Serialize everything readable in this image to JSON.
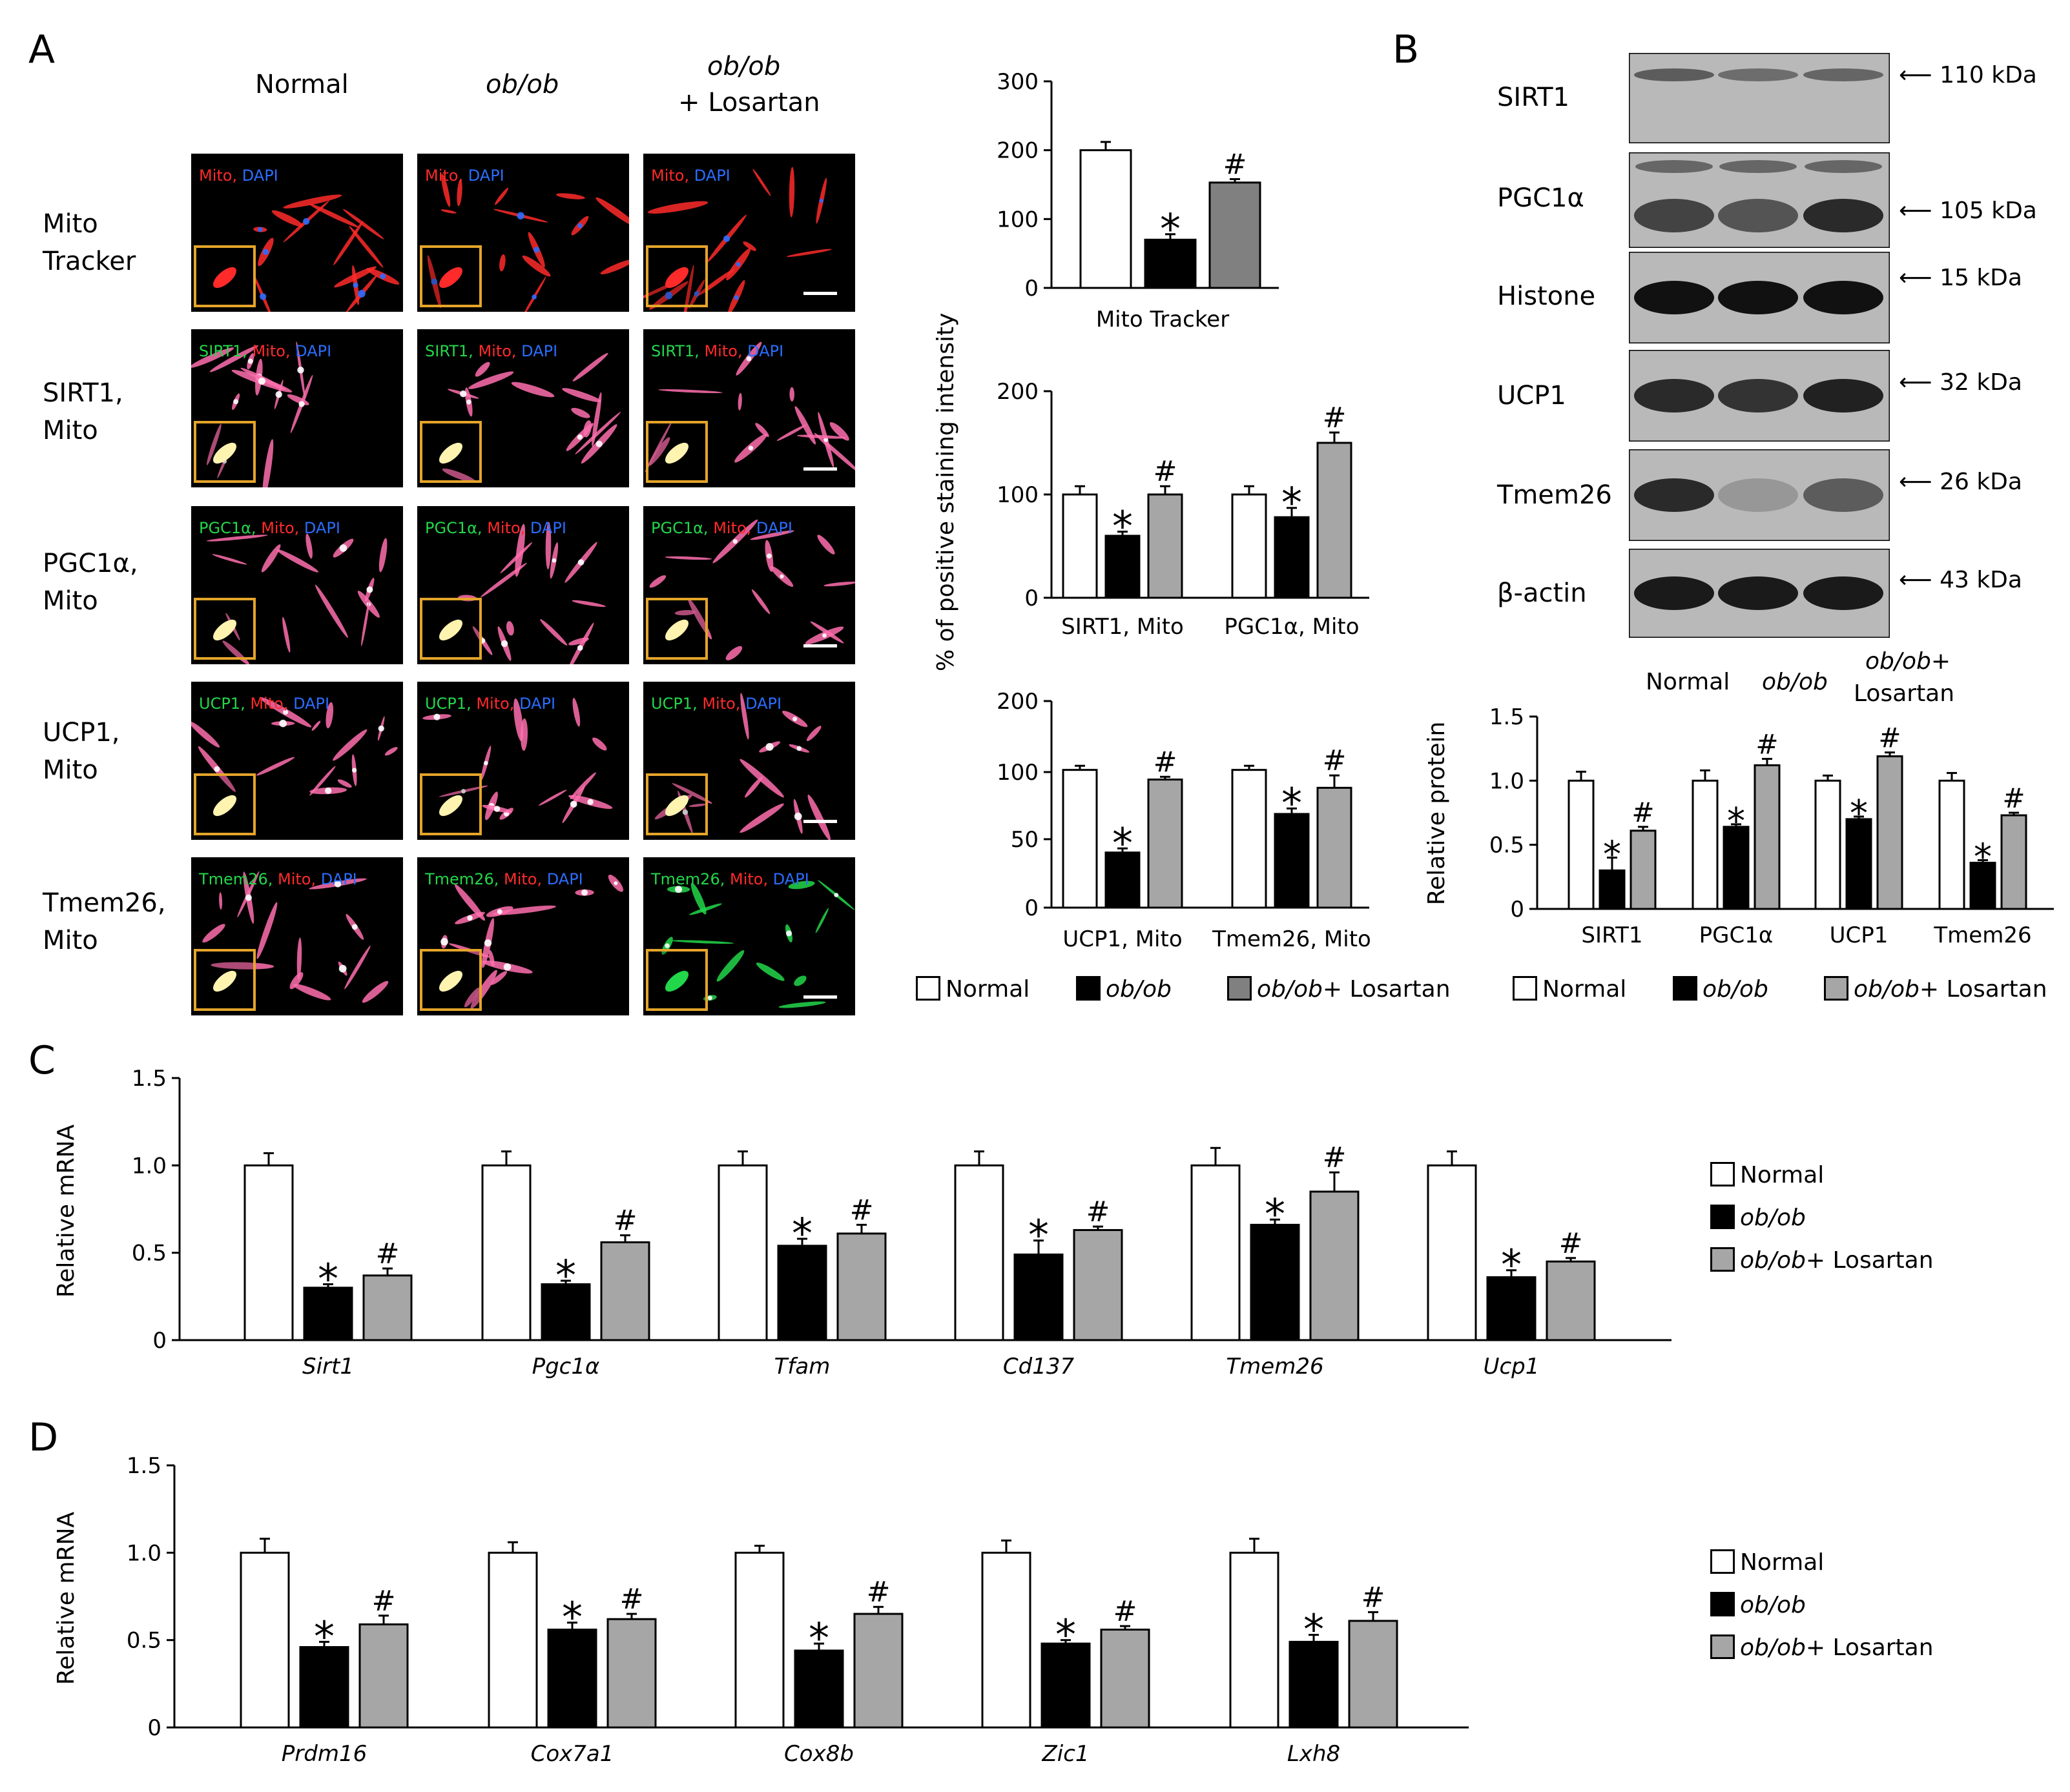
{
  "panels": {
    "A": "A",
    "B": "B",
    "C": "C",
    "D": "D"
  },
  "colors": {
    "normal": "#ffffff",
    "obob": "#000000",
    "losartan_A_mito": "#808080",
    "losartan": "#a6a6a6",
    "red": "#ff2a2a",
    "green": "#22d74a",
    "blue": "#2a6dff",
    "inset": "#e5a52a"
  },
  "panel_a": {
    "column_headers": [
      "Normal",
      "ob/ob",
      "ob/ob",
      "+ Losartan"
    ],
    "row_labels": [
      [
        "Mito",
        "Tracker"
      ],
      [
        "SIRT1,",
        "Mito"
      ],
      [
        "PGC1α,",
        "Mito"
      ],
      [
        "UCP1,",
        "Mito"
      ],
      [
        "Tmem26,",
        "Mito"
      ]
    ],
    "image_labels": [
      [
        "Mito, ",
        "DAPI"
      ],
      [
        "SIRT1, ",
        "Mito, ",
        "DAPI"
      ],
      [
        "PGC1α, ",
        "Mito, ",
        "DAPI"
      ],
      [
        "UCP1, ",
        "Mito, ",
        "DAPI"
      ],
      [
        "Tmem26, ",
        "Mito, ",
        "DAPI"
      ]
    ],
    "y_axis_label": "% of positive staining intensity",
    "legend": [
      "Normal",
      "ob/ob",
      "ob/ob+ Losartan"
    ]
  },
  "panel_b": {
    "blot_labels": [
      "SIRT1",
      "PGC1α",
      "Histone",
      "UCP1",
      "Tmem26",
      "β-actin"
    ],
    "kda_labels": [
      "110 kDa",
      "105 kDa",
      "15 kDa",
      "32 kDa",
      "26 kDa",
      "43 kDa"
    ],
    "lane_labels": [
      "Normal",
      "ob/ob",
      "ob/ob+",
      "Losartan"
    ],
    "legend": [
      "Normal",
      "ob/ob",
      "ob/ob+ Losartan"
    ]
  },
  "panel_c": {
    "legend": [
      "Normal",
      "ob/ob",
      "ob/ob+ Losartan"
    ]
  },
  "panel_d": {
    "legend": [
      "Normal",
      "ob/ob",
      "ob/ob+ Losartan"
    ]
  },
  "chart_data": [
    {
      "id": "a_mito",
      "type": "bar",
      "xlabel": "Mito Tracker",
      "yticks": [
        "0",
        "100",
        "200",
        "300"
      ],
      "ylim": [
        0,
        300
      ],
      "categories": [
        ""
      ],
      "series": [
        {
          "name": "Normal",
          "values": [
            200
          ],
          "errors": [
            12
          ]
        },
        {
          "name": "ob/ob",
          "values": [
            70
          ],
          "errors": [
            8
          ],
          "marks": [
            "*"
          ]
        },
        {
          "name": "ob/ob+ Losartan",
          "values": [
            153
          ],
          "errors": [
            5
          ],
          "marks": [
            "#"
          ]
        }
      ]
    },
    {
      "id": "a_sirt_pgc",
      "type": "bar",
      "xlabel": "",
      "yticks": [
        "0",
        "100",
        "200"
      ],
      "ylim": [
        0,
        200
      ],
      "categories": [
        "SIRT1, Mito",
        "PGC1α, Mito"
      ],
      "series": [
        {
          "name": "Normal",
          "values": [
            100,
            100
          ],
          "errors": [
            8,
            8
          ]
        },
        {
          "name": "ob/ob",
          "values": [
            60,
            78
          ],
          "errors": [
            4,
            9
          ],
          "marks": [
            "*",
            "*"
          ]
        },
        {
          "name": "ob/ob+ Losartan",
          "values": [
            100,
            150
          ],
          "errors": [
            8,
            10
          ],
          "marks": [
            "#",
            "#"
          ]
        }
      ]
    },
    {
      "id": "a_ucp_tmem",
      "type": "bar",
      "xlabel": "",
      "yticks": [
        "0",
        "50",
        "100",
        "200"
      ],
      "ylim": [
        0,
        150
      ],
      "categories": [
        "UCP1, Mito",
        "Tmem26, Mito"
      ],
      "series": [
        {
          "name": "Normal",
          "values": [
            100,
            100
          ],
          "errors": [
            3,
            3
          ]
        },
        {
          "name": "ob/ob",
          "values": [
            40,
            68
          ],
          "errors": [
            3,
            4
          ],
          "marks": [
            "*",
            "*"
          ]
        },
        {
          "name": "ob/ob+ Losartan",
          "values": [
            93,
            87
          ],
          "errors": [
            2,
            9
          ],
          "marks": [
            "#",
            "#"
          ]
        }
      ]
    },
    {
      "id": "b_protein",
      "type": "bar",
      "ylabel": "Relative protein",
      "yticks": [
        "0",
        "0.5",
        "1.0",
        "1.5"
      ],
      "ylim": [
        0,
        1.5
      ],
      "categories": [
        "SIRT1",
        "PGC1α",
        "UCP1",
        "Tmem26"
      ],
      "series": [
        {
          "name": "Normal",
          "values": [
            1.0,
            1.0,
            1.0,
            1.0
          ],
          "errors": [
            0.07,
            0.08,
            0.04,
            0.06
          ]
        },
        {
          "name": "ob/ob",
          "values": [
            0.3,
            0.64,
            0.7,
            0.36
          ],
          "errors": [
            0.1,
            0.02,
            0.02,
            0.02
          ],
          "marks": [
            "*",
            "*",
            "*",
            "*"
          ]
        },
        {
          "name": "ob/ob+ Losartan",
          "values": [
            0.61,
            1.12,
            1.19,
            0.73
          ],
          "errors": [
            0.03,
            0.05,
            0.03,
            0.02
          ],
          "marks": [
            "#",
            "#",
            "#",
            "#"
          ]
        }
      ]
    },
    {
      "id": "c_mrna",
      "type": "bar",
      "ylabel": "Relative mRNA",
      "yticks": [
        "0",
        "0.5",
        "1.0",
        "1.5"
      ],
      "ylim": [
        0,
        1.5
      ],
      "categories": [
        "Sirt1",
        "Pgc1α",
        "Tfam",
        "Cd137",
        "Tmem26",
        "Ucp1"
      ],
      "series": [
        {
          "name": "Normal",
          "values": [
            1.0,
            1.0,
            1.0,
            1.0,
            1.0,
            1.0
          ],
          "errors": [
            0.07,
            0.08,
            0.08,
            0.08,
            0.1,
            0.08
          ]
        },
        {
          "name": "ob/ob",
          "values": [
            0.3,
            0.32,
            0.54,
            0.49,
            0.66,
            0.36
          ],
          "errors": [
            0.02,
            0.02,
            0.04,
            0.08,
            0.03,
            0.04
          ],
          "marks": [
            "*",
            "*",
            "*",
            "*",
            "*",
            "*"
          ]
        },
        {
          "name": "ob/ob+ Losartan",
          "values": [
            0.37,
            0.56,
            0.61,
            0.63,
            0.85,
            0.45
          ],
          "errors": [
            0.04,
            0.04,
            0.05,
            0.02,
            0.11,
            0.02
          ],
          "marks": [
            "#",
            "#",
            "#",
            "#",
            "#",
            "#"
          ]
        }
      ]
    },
    {
      "id": "d_mrna",
      "type": "bar",
      "ylabel": "Relative mRNA",
      "yticks": [
        "0",
        "0.5",
        "1.0",
        "1.5"
      ],
      "ylim": [
        0,
        1.5
      ],
      "categories": [
        "Prdm16",
        "Cox7a1",
        "Cox8b",
        "Zic1",
        "Lxh8"
      ],
      "series": [
        {
          "name": "Normal",
          "values": [
            1.0,
            1.0,
            1.0,
            1.0,
            1.0
          ],
          "errors": [
            0.08,
            0.06,
            0.04,
            0.07,
            0.08
          ]
        },
        {
          "name": "ob/ob",
          "values": [
            0.46,
            0.56,
            0.44,
            0.48,
            0.49
          ],
          "errors": [
            0.03,
            0.04,
            0.04,
            0.02,
            0.04
          ],
          "marks": [
            "*",
            "*",
            "*",
            "*",
            "*"
          ]
        },
        {
          "name": "ob/ob+ Losartan",
          "values": [
            0.59,
            0.62,
            0.65,
            0.56,
            0.61
          ],
          "errors": [
            0.05,
            0.03,
            0.04,
            0.02,
            0.05
          ],
          "marks": [
            "#",
            "#",
            "#",
            "#",
            "#"
          ]
        }
      ]
    }
  ]
}
